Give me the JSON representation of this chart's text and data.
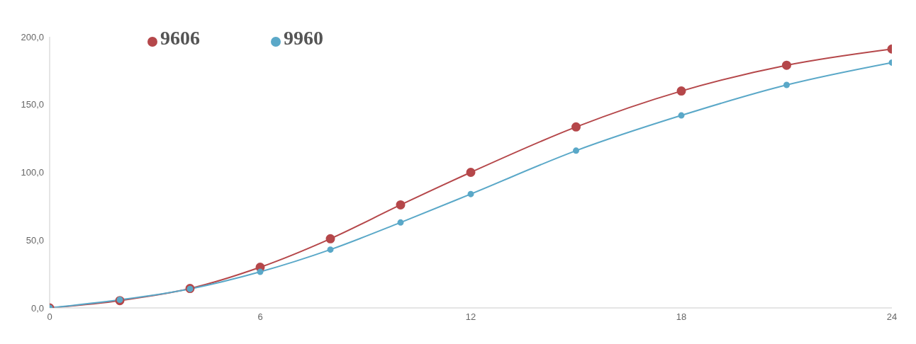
{
  "chart_data": {
    "type": "line",
    "x": [
      0,
      2,
      4,
      6,
      8,
      10,
      12,
      15,
      18,
      21,
      24
    ],
    "series": [
      {
        "name": "9606",
        "color": "#b5474a",
        "values": [
          0,
          5.4,
          14.3,
          30,
          51,
          76,
          100,
          133.5,
          160,
          179,
          191
        ]
      },
      {
        "name": "9960",
        "color": "#5aa8c8",
        "values": [
          0,
          6,
          14,
          26.6,
          43,
          63,
          84,
          116,
          142,
          164.5,
          181
        ]
      }
    ],
    "xlim": [
      0,
      24
    ],
    "xticks": [
      0,
      6,
      12,
      18,
      24
    ],
    "ylim": [
      0,
      200
    ],
    "yticks": [
      {
        "value": 0,
        "label": "0,0"
      },
      {
        "value": 50,
        "label": "50,0"
      },
      {
        "value": 100,
        "label": "100,0"
      },
      {
        "value": 150,
        "label": "150,0"
      },
      {
        "value": 200,
        "label": "200,0"
      }
    ],
    "grid": false,
    "legend": "top left",
    "marker": "circle",
    "line_style": "solid"
  }
}
